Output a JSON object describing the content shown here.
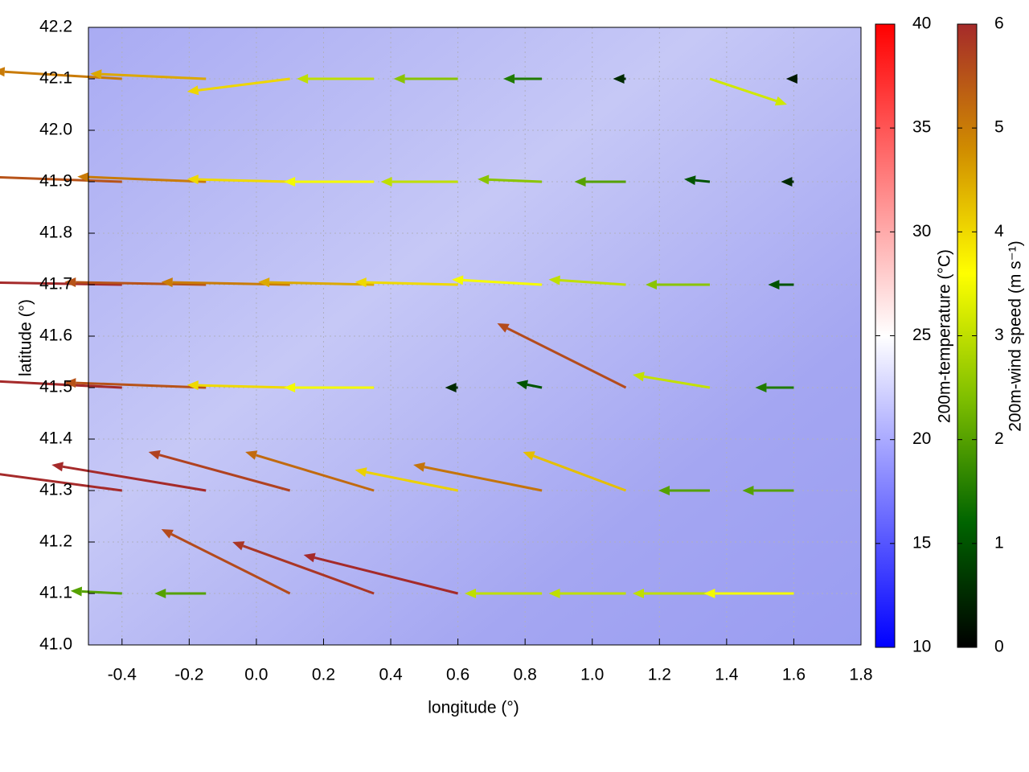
{
  "chart_data": {
    "type": "quiver",
    "xlabel": "longitude (°)",
    "ylabel": "latitude (°)",
    "xlim": [
      -0.5,
      1.8
    ],
    "ylim": [
      41.0,
      42.2
    ],
    "xticks": [
      -0.4,
      -0.2,
      {
        "value": 0,
        "label": "0.0"
      },
      0.2,
      0.4,
      0.6,
      0.8,
      {
        "value": 1,
        "label": "1.0"
      },
      1.2,
      1.4,
      1.6,
      1.8
    ],
    "yticks": [
      {
        "value": 41,
        "label": "41.0"
      },
      41.1,
      41.2,
      41.3,
      41.4,
      41.5,
      41.6,
      41.7,
      41.8,
      41.9,
      {
        "value": 42,
        "label": "42.0"
      },
      42.1,
      42.2
    ],
    "grid": true,
    "temperature_colorbar": {
      "label": "200m-temperature (°C)",
      "lim": [
        10,
        40
      ],
      "ticks": [
        10,
        15,
        20,
        25,
        30,
        35,
        40
      ],
      "colors": [
        "#0000ff",
        "#ffffff",
        "#ff0000"
      ]
    },
    "speed_colorbar": {
      "label": "200m-wind speed (m s⁻¹)",
      "lim": [
        0,
        6
      ],
      "ticks": [
        0,
        1,
        2,
        3,
        4,
        5,
        6
      ],
      "colors": [
        "#000000",
        "#006400",
        "#7fbf00",
        "#ffff00",
        "#d08c00",
        "#a52a2a"
      ]
    },
    "vectors": {
      "x": [
        -0.4,
        -0.15,
        0.1,
        0.35,
        0.6,
        0.85,
        1.1,
        1.35,
        1.6,
        -0.4,
        -0.15,
        0.1,
        0.35,
        0.6,
        0.85,
        1.1,
        1.35,
        1.6,
        -0.4,
        -0.15,
        0.1,
        0.35,
        0.6,
        0.85,
        1.1,
        1.35,
        1.6,
        -0.4,
        -0.15,
        0.1,
        0.35,
        0.6,
        0.85,
        1.1,
        1.35,
        1.6,
        -0.4,
        -0.15,
        0.1,
        0.35,
        0.6,
        0.85,
        1.1,
        1.35,
        1.6,
        -0.4,
        -0.15,
        0.1,
        0.35,
        0.6,
        0.85,
        1.1,
        1.35,
        1.6
      ],
      "y": [
        42.1,
        42.1,
        42.1,
        42.1,
        42.1,
        42.1,
        42.1,
        42.1,
        42.1,
        41.9,
        41.9,
        41.9,
        41.9,
        41.9,
        41.9,
        41.9,
        41.9,
        41.9,
        41.7,
        41.7,
        41.7,
        41.7,
        41.7,
        41.7,
        41.7,
        41.7,
        41.7,
        41.5,
        41.5,
        41.5,
        41.5,
        41.5,
        41.5,
        41.5,
        41.5,
        41.5,
        41.3,
        41.3,
        41.3,
        41.3,
        41.3,
        41.3,
        41.3,
        41.3,
        41.3,
        41.1,
        41.1,
        41.1,
        41.1,
        41.1,
        41.1,
        41.1,
        41.1,
        41.1
      ],
      "u": [
        -5,
        -4.5,
        -4,
        -3,
        -2.5,
        -1.5,
        -0.5,
        3,
        -0.3,
        -5.5,
        -5,
        -4,
        -3.5,
        -3,
        -2.5,
        -2,
        -1,
        -0.5,
        -6,
        -5.5,
        -5,
        -4.5,
        -4,
        -3.5,
        -3,
        -2.5,
        -1,
        -6,
        -5.5,
        -4,
        -3.5,
        -0.5,
        -1,
        -5,
        -3,
        -1.5,
        -6,
        -6,
        -5.5,
        -5,
        -4,
        -5,
        -4,
        -2,
        -2,
        -2,
        -2,
        -5,
        -5.5,
        -6,
        -3,
        -3,
        -3,
        -3.5
      ],
      "v": [
        0.3,
        0.2,
        -0.5,
        0,
        0,
        0,
        0,
        -1,
        0,
        0.2,
        0.2,
        0.1,
        0,
        0,
        0.1,
        0,
        0.1,
        0,
        0.1,
        0.1,
        0.1,
        0.1,
        0.1,
        0.2,
        0.2,
        0,
        0,
        0.3,
        0.2,
        0.1,
        0,
        0,
        0.2,
        2.5,
        0.5,
        0,
        0.8,
        1,
        1.5,
        1.5,
        0.8,
        1,
        1.5,
        0,
        0,
        0.1,
        0,
        2.5,
        2,
        1.5,
        0,
        0,
        0,
        0
      ]
    }
  }
}
